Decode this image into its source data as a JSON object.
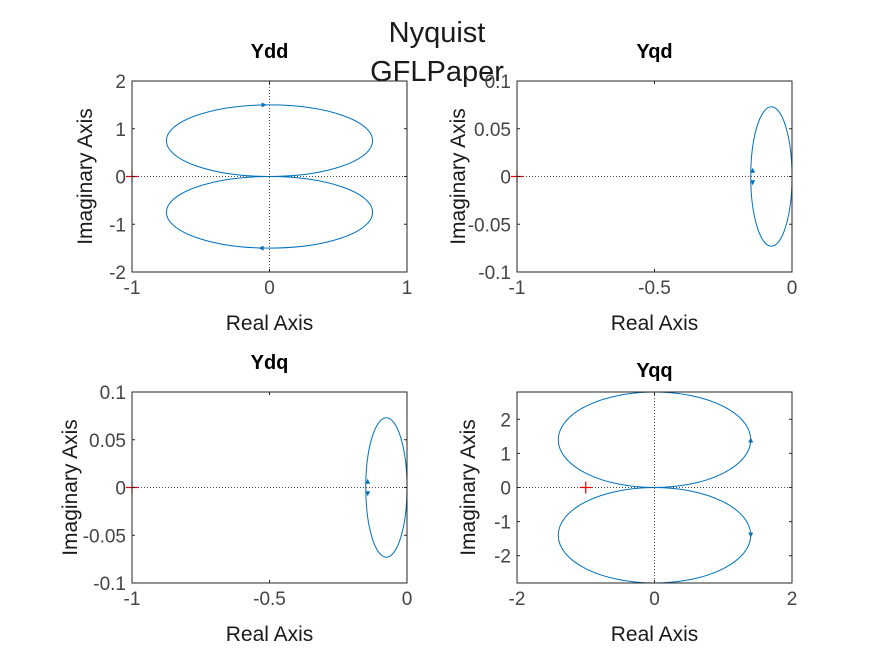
{
  "figure": {
    "title_lines": [
      "Nyquist",
      "GFLPaper"
    ]
  },
  "chart_data": [
    {
      "type": "line",
      "name": "nyquist-ydd",
      "title": "Ydd",
      "xlabel": "Real Axis",
      "ylabel": "Imaginary Axis",
      "xlim": [
        -1,
        1
      ],
      "ylim": [
        -2,
        2
      ],
      "xticks": [
        -1,
        0,
        1
      ],
      "yticks": [
        -2,
        -1,
        0,
        1,
        2
      ],
      "grid": false,
      "critical_point": [
        -1,
        0
      ],
      "loops": [
        {
          "center": [
            0,
            0.75
          ],
          "rx": 0.75,
          "ry": 0.75
        },
        {
          "center": [
            0,
            -0.75
          ],
          "rx": 0.75,
          "ry": 0.75
        }
      ],
      "arrows": [
        [
          -0.05,
          1.5
        ],
        [
          -0.05,
          -1.5
        ]
      ]
    },
    {
      "type": "line",
      "name": "nyquist-yqd",
      "title": "Yqd",
      "xlabel": "Real Axis",
      "ylabel": "Imaginary Axis",
      "xlim": [
        -1,
        0
      ],
      "ylim": [
        -0.1,
        0.1
      ],
      "xticks": [
        -1,
        -0.5,
        0
      ],
      "yticks": [
        -0.1,
        -0.05,
        0,
        0.05,
        0.1
      ],
      "grid": false,
      "critical_point": [
        -1,
        0
      ],
      "loops": [
        {
          "center": [
            -0.075,
            0
          ],
          "rx": 0.075,
          "ry": 0.073
        }
      ],
      "arrows": [
        [
          -0.143,
          0.005
        ],
        [
          -0.143,
          -0.005
        ]
      ]
    },
    {
      "type": "line",
      "name": "nyquist-ydq",
      "title": "Ydq",
      "xlabel": "Real Axis",
      "ylabel": "Imaginary Axis",
      "xlim": [
        -1,
        0
      ],
      "ylim": [
        -0.1,
        0.1
      ],
      "xticks": [
        -1,
        -0.5,
        0
      ],
      "yticks": [
        -0.1,
        -0.05,
        0,
        0.05,
        0.1
      ],
      "grid": false,
      "critical_point": [
        -1,
        0
      ],
      "loops": [
        {
          "center": [
            -0.075,
            0
          ],
          "rx": 0.075,
          "ry": 0.073
        }
      ],
      "arrows": [
        [
          -0.143,
          0.005
        ],
        [
          -0.143,
          -0.005
        ]
      ]
    },
    {
      "type": "line",
      "name": "nyquist-yqq",
      "title": "Yqq",
      "xlabel": "Real Axis",
      "ylabel": "Imaginary Axis",
      "xlim": [
        -2,
        2
      ],
      "ylim": [
        -2.8,
        2.8
      ],
      "xticks": [
        -2,
        0,
        2
      ],
      "yticks": [
        -2,
        -1,
        0,
        1,
        2
      ],
      "grid": false,
      "critical_point": [
        -1,
        0
      ],
      "loops": [
        {
          "center": [
            0,
            1.4
          ],
          "rx": 1.4,
          "ry": 1.4
        },
        {
          "center": [
            0,
            -1.4
          ],
          "rx": 1.4,
          "ry": 1.4
        }
      ],
      "arrows": [
        [
          1.4,
          1.35
        ],
        [
          1.4,
          -1.35
        ]
      ]
    }
  ],
  "colors": {
    "curve": "#0072BD",
    "critical_point": "#E60000",
    "axes": "#262626",
    "tick_label": "#444444",
    "zero_line": "#4d4d4d"
  }
}
